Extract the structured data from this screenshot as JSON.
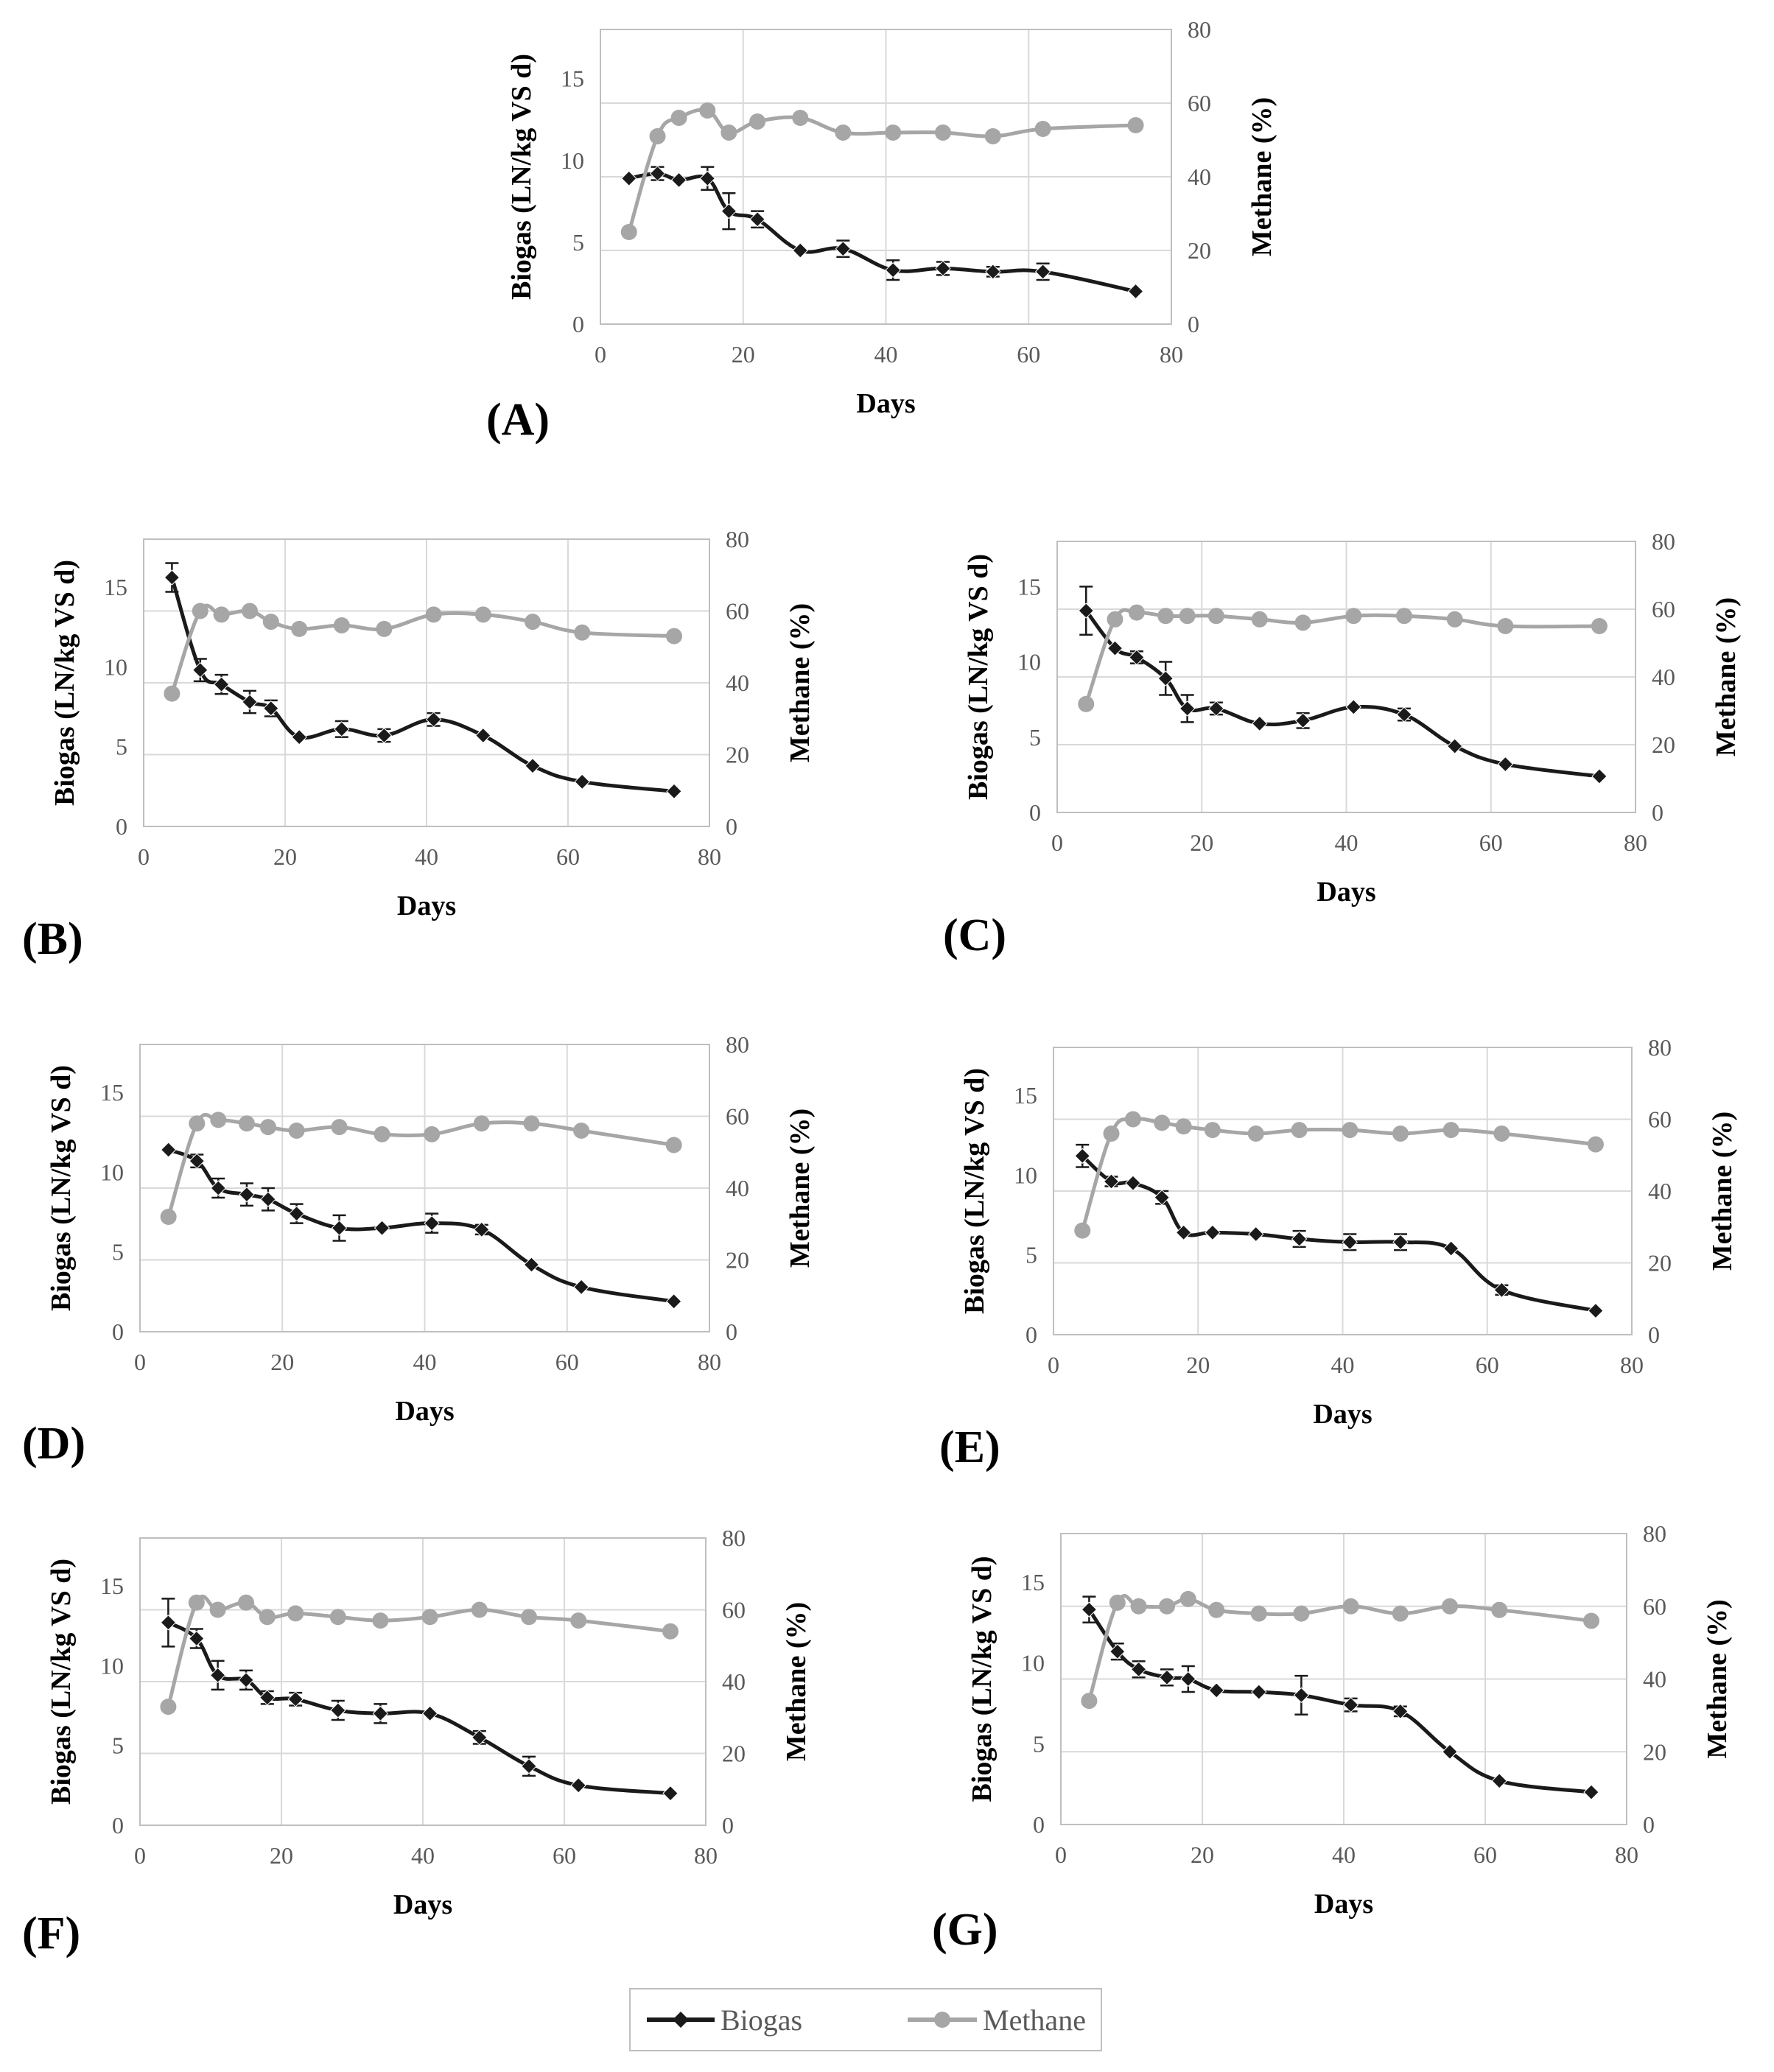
{
  "colors": {
    "biogas": "#1a1a1a",
    "methane": "#a6a6a6",
    "grid": "#d9d9d9",
    "frame": "#bfbfbf",
    "tick_text": "#595959"
  },
  "legend": {
    "biogas_label": "Biogas",
    "methane_label": "Methane"
  },
  "chart_data": [
    {
      "type": "line",
      "panel_label": "(A)",
      "xlabel": "Days",
      "ylabel_left": "Biogas (LN/kg VS d)",
      "ylabel_right": "Methane (%)",
      "xlim": [
        0,
        80
      ],
      "xticks": [
        0,
        20,
        40,
        60,
        80
      ],
      "ylim_left": [
        0,
        18
      ],
      "yticks_left": [
        0,
        5,
        10,
        15
      ],
      "ylim_right": [
        0,
        80
      ],
      "yticks_right": [
        0,
        20,
        40,
        60,
        80
      ],
      "x": [
        4,
        8,
        11,
        15,
        18,
        22,
        28,
        34,
        41,
        48,
        55,
        62,
        75
      ],
      "series": [
        {
          "name": "Biogas",
          "axis": "left",
          "values": [
            8.9,
            9.2,
            8.8,
            8.9,
            6.9,
            6.4,
            4.5,
            4.6,
            3.3,
            3.4,
            3.2,
            3.2,
            2.0
          ],
          "errors": [
            0,
            0.4,
            0,
            0.7,
            1.1,
            0.5,
            0,
            0.5,
            0.6,
            0.4,
            0.3,
            0.5,
            0
          ]
        },
        {
          "name": "Methane",
          "axis": "right",
          "values": [
            25,
            51,
            56,
            58,
            52,
            55,
            56,
            52,
            52,
            52,
            51,
            53,
            54
          ]
        }
      ]
    },
    {
      "type": "line",
      "panel_label": "(B)",
      "xlabel": "Days",
      "ylabel_left": "Biogas (LN/kg VS d)",
      "ylabel_right": "Methane (%)",
      "xlim": [
        0,
        80
      ],
      "xticks": [
        0,
        20,
        40,
        60,
        80
      ],
      "ylim_left": [
        0,
        18
      ],
      "yticks_left": [
        0,
        5,
        10,
        15
      ],
      "ylim_right": [
        0,
        80
      ],
      "yticks_right": [
        0,
        20,
        40,
        60,
        80
      ],
      "x": [
        4,
        8,
        11,
        15,
        18,
        22,
        28,
        34,
        41,
        48,
        55,
        62,
        75
      ],
      "series": [
        {
          "name": "Biogas",
          "axis": "left",
          "values": [
            15.6,
            9.8,
            8.9,
            7.8,
            7.4,
            5.6,
            6.1,
            5.7,
            6.7,
            5.7,
            3.8,
            2.8,
            2.2
          ],
          "errors": [
            0.9,
            0.7,
            0.6,
            0.7,
            0.5,
            0,
            0.5,
            0.4,
            0.4,
            0,
            0,
            0,
            0
          ]
        },
        {
          "name": "Methane",
          "axis": "right",
          "values": [
            37,
            60,
            59,
            60,
            57,
            55,
            56,
            55,
            59,
            59,
            57,
            54,
            53
          ]
        }
      ]
    },
    {
      "type": "line",
      "panel_label": "(C)",
      "xlabel": "Days",
      "ylabel_left": "Biogas (LN/kg VS d)",
      "ylabel_right": "Methane (%)",
      "xlim": [
        0,
        80
      ],
      "xticks": [
        0,
        20,
        40,
        60,
        80
      ],
      "ylim_left": [
        0,
        18
      ],
      "yticks_left": [
        0,
        5,
        10,
        15
      ],
      "ylim_right": [
        0,
        80
      ],
      "yticks_right": [
        0,
        20,
        40,
        60,
        80
      ],
      "x": [
        4,
        8,
        11,
        15,
        18,
        22,
        28,
        34,
        41,
        48,
        55,
        62,
        75
      ],
      "series": [
        {
          "name": "Biogas",
          "axis": "left",
          "values": [
            13.4,
            10.9,
            10.3,
            8.9,
            6.9,
            6.9,
            5.9,
            6.1,
            7.0,
            6.5,
            4.4,
            3.2,
            2.4
          ],
          "errors": [
            1.6,
            0,
            0.4,
            1.1,
            0.9,
            0.4,
            0,
            0.5,
            0,
            0.4,
            0,
            0,
            0
          ]
        },
        {
          "name": "Methane",
          "axis": "right",
          "values": [
            32,
            57,
            59,
            58,
            58,
            58,
            57,
            56,
            58,
            58,
            57,
            55,
            55
          ]
        }
      ]
    },
    {
      "type": "line",
      "panel_label": "(D)",
      "xlabel": "Days",
      "ylabel_left": "Biogas (LN/kg VS d)",
      "ylabel_right": "Methane (%)",
      "xlim": [
        0,
        80
      ],
      "xticks": [
        0,
        20,
        40,
        60,
        80
      ],
      "ylim_left": [
        0,
        18
      ],
      "yticks_left": [
        0,
        5,
        10,
        15
      ],
      "ylim_right": [
        0,
        80
      ],
      "yticks_right": [
        0,
        20,
        40,
        60,
        80
      ],
      "x": [
        4,
        8,
        11,
        15,
        18,
        22,
        28,
        34,
        41,
        48,
        55,
        62,
        75
      ],
      "series": [
        {
          "name": "Biogas",
          "axis": "left",
          "values": [
            11.4,
            10.7,
            9.0,
            8.6,
            8.3,
            7.4,
            6.5,
            6.5,
            6.8,
            6.4,
            4.2,
            2.8,
            1.9
          ],
          "errors": [
            0,
            0.4,
            0.6,
            0.7,
            0.7,
            0.6,
            0.8,
            0,
            0.6,
            0.3,
            0,
            0,
            0
          ]
        },
        {
          "name": "Methane",
          "axis": "right",
          "values": [
            32,
            58,
            59,
            58,
            57,
            56,
            57,
            55,
            55,
            58,
            58,
            56,
            52
          ]
        }
      ]
    },
    {
      "type": "line",
      "panel_label": "(E)",
      "xlabel": "Days",
      "ylabel_left": "Biogas (LN/kg VS d)",
      "ylabel_right": "Methane (%)",
      "xlim": [
        0,
        80
      ],
      "xticks": [
        0,
        20,
        40,
        60,
        80
      ],
      "ylim_left": [
        0,
        18
      ],
      "yticks_left": [
        0,
        5,
        10,
        15
      ],
      "ylim_right": [
        0,
        80
      ],
      "yticks_right": [
        0,
        20,
        40,
        60,
        80
      ],
      "x": [
        4,
        8,
        11,
        15,
        18,
        22,
        28,
        34,
        41,
        48,
        55,
        62,
        75
      ],
      "series": [
        {
          "name": "Biogas",
          "axis": "left",
          "values": [
            11.2,
            9.6,
            9.5,
            8.6,
            6.4,
            6.4,
            6.3,
            6.0,
            5.8,
            5.8,
            5.4,
            2.8,
            1.5
          ],
          "errors": [
            0.7,
            0.3,
            0,
            0.4,
            0,
            0,
            0,
            0.5,
            0.5,
            0.5,
            0,
            0.3,
            0
          ]
        },
        {
          "name": "Methane",
          "axis": "right",
          "values": [
            29,
            56,
            60,
            59,
            58,
            57,
            56,
            57,
            57,
            56,
            57,
            56,
            53
          ]
        }
      ]
    },
    {
      "type": "line",
      "panel_label": "(F)",
      "xlabel": "Days",
      "ylabel_left": "Biogas (LN/kg VS d)",
      "ylabel_right": "Methane (%)",
      "xlim": [
        0,
        80
      ],
      "xticks": [
        0,
        20,
        40,
        60,
        80
      ],
      "ylim_left": [
        0,
        18
      ],
      "yticks_left": [
        0,
        5,
        10,
        15
      ],
      "ylim_right": [
        0,
        80
      ],
      "yticks_right": [
        0,
        20,
        40,
        60,
        80
      ],
      "x": [
        4,
        8,
        11,
        15,
        18,
        22,
        28,
        34,
        41,
        48,
        55,
        62,
        75
      ],
      "series": [
        {
          "name": "Biogas",
          "axis": "left",
          "values": [
            12.7,
            11.7,
            9.4,
            9.1,
            8.0,
            7.9,
            7.2,
            7.0,
            7.0,
            5.5,
            3.7,
            2.5,
            2.0
          ],
          "errors": [
            1.5,
            0.6,
            0.9,
            0.6,
            0.4,
            0.4,
            0.6,
            0.6,
            0,
            0.4,
            0.6,
            0,
            0
          ]
        },
        {
          "name": "Methane",
          "axis": "right",
          "values": [
            33,
            62,
            60,
            62,
            58,
            59,
            58,
            57,
            58,
            60,
            58,
            57,
            54
          ]
        }
      ]
    },
    {
      "type": "line",
      "panel_label": "(G)",
      "xlabel": "Days",
      "ylabel_left": "Biogas (LN/kg VS d)",
      "ylabel_right": "Methane (%)",
      "xlim": [
        0,
        80
      ],
      "xticks": [
        0,
        20,
        40,
        60,
        80
      ],
      "ylim_left": [
        0,
        18
      ],
      "yticks_left": [
        0,
        5,
        10,
        15
      ],
      "ylim_right": [
        0,
        80
      ],
      "yticks_right": [
        0,
        20,
        40,
        60,
        80
      ],
      "x": [
        4,
        8,
        11,
        15,
        18,
        22,
        28,
        34,
        41,
        48,
        55,
        62,
        75
      ],
      "series": [
        {
          "name": "Biogas",
          "axis": "left",
          "values": [
            13.3,
            10.7,
            9.6,
            9.1,
            9.0,
            8.3,
            8.2,
            8.0,
            7.4,
            7.0,
            4.5,
            2.7,
            2.0
          ],
          "errors": [
            0.8,
            0.5,
            0.5,
            0.5,
            0.8,
            0,
            0,
            1.2,
            0.4,
            0.3,
            0,
            0,
            0
          ]
        },
        {
          "name": "Methane",
          "axis": "right",
          "values": [
            34,
            61,
            60,
            60,
            62,
            59,
            58,
            58,
            60,
            58,
            60,
            59,
            56
          ]
        }
      ]
    }
  ]
}
